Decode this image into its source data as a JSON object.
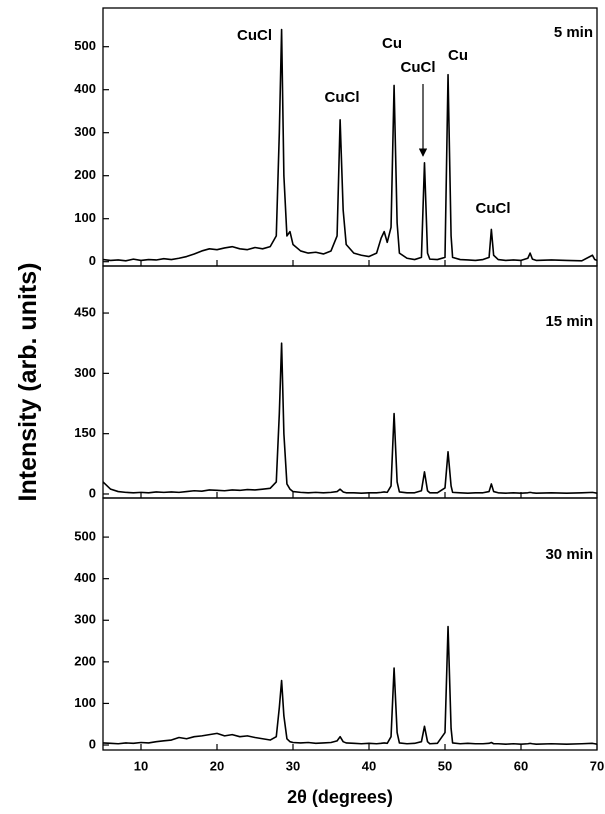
{
  "chart_data": [
    {
      "type": "line",
      "label": "5 min",
      "annotations": [
        "CuCl",
        "CuCl",
        "Cu",
        "CuCl",
        "Cu",
        "CuCl"
      ],
      "xlim": [
        5,
        70
      ],
      "xticks": [
        10,
        20,
        30,
        40,
        50,
        60,
        70
      ],
      "ylim": [
        -10,
        590
      ],
      "yticks": [
        0,
        100,
        200,
        300,
        400,
        500
      ],
      "series": [
        {
          "color": "#000000",
          "x": [
            5,
            6,
            7,
            8,
            9,
            10,
            11,
            12,
            13,
            14,
            15,
            16,
            17,
            18,
            19,
            20,
            21,
            22,
            23,
            24,
            25,
            26,
            27,
            27.8,
            28.2,
            28.5,
            28.8,
            29.2,
            29.6,
            30,
            31,
            32,
            33,
            34,
            35,
            35.8,
            36.2,
            36.6,
            37,
            38,
            39,
            40,
            41,
            41.6,
            42,
            42.4,
            42.9,
            43.3,
            43.7,
            44,
            45,
            46,
            46.9,
            47.3,
            47.7,
            48,
            49,
            50,
            50.4,
            50.8,
            51,
            52,
            53,
            54,
            55,
            55.8,
            56.1,
            56.4,
            57,
            58,
            59,
            60,
            60.9,
            61.2,
            61.5,
            62,
            64,
            66,
            68,
            69.4,
            69.7,
            70
          ],
          "values": [
            5,
            3,
            4,
            2,
            6,
            3,
            5,
            4,
            7,
            5,
            8,
            12,
            18,
            25,
            30,
            28,
            32,
            35,
            30,
            28,
            33,
            30,
            35,
            60,
            300,
            540,
            200,
            60,
            70,
            40,
            25,
            20,
            22,
            18,
            25,
            60,
            330,
            120,
            40,
            20,
            15,
            12,
            20,
            55,
            70,
            45,
            80,
            410,
            90,
            20,
            8,
            5,
            10,
            230,
            20,
            6,
            5,
            10,
            435,
            60,
            10,
            5,
            4,
            3,
            5,
            10,
            75,
            15,
            5,
            3,
            4,
            3,
            8,
            20,
            6,
            3,
            4,
            3,
            2,
            15,
            5,
            3
          ]
        }
      ]
    },
    {
      "type": "line",
      "label": "15 min",
      "ylabel": "Intensity (arb. units)",
      "xlim": [
        5,
        70
      ],
      "xticks": [
        10,
        20,
        30,
        40,
        50,
        60,
        70
      ],
      "ylim": [
        -10,
        567
      ],
      "yticks": [
        0,
        150,
        300,
        450
      ],
      "series": [
        {
          "color": "#000000",
          "x": [
            5,
            6,
            7,
            8,
            9,
            10,
            11,
            12,
            13,
            14,
            15,
            16,
            17,
            18,
            19,
            20,
            21,
            22,
            23,
            24,
            25,
            26,
            27,
            27.8,
            28.2,
            28.5,
            28.8,
            29.2,
            29.6,
            30,
            31,
            32,
            33,
            34,
            35,
            35.8,
            36.2,
            36.6,
            37,
            38,
            39,
            40,
            41,
            41.6,
            42,
            42.4,
            42.9,
            43.3,
            43.7,
            44,
            45,
            46,
            46.9,
            47.3,
            47.7,
            48,
            49,
            50,
            50.4,
            50.8,
            51,
            52,
            53,
            54,
            55,
            55.8,
            56.1,
            56.4,
            57,
            58,
            59,
            60,
            60.9,
            61.2,
            61.5,
            62,
            64,
            66,
            68,
            69.4,
            69.7,
            70
          ],
          "values": [
            30,
            12,
            6,
            4,
            3,
            4,
            3,
            5,
            4,
            5,
            4,
            6,
            8,
            7,
            10,
            9,
            8,
            10,
            9,
            11,
            10,
            12,
            14,
            30,
            200,
            375,
            150,
            25,
            12,
            6,
            4,
            3,
            4,
            3,
            4,
            6,
            12,
            5,
            3,
            3,
            2,
            3,
            3,
            4,
            5,
            4,
            20,
            200,
            30,
            5,
            3,
            3,
            8,
            55,
            8,
            3,
            3,
            15,
            105,
            20,
            4,
            3,
            2,
            3,
            3,
            6,
            25,
            6,
            3,
            2,
            3,
            2,
            3,
            4,
            3,
            2,
            3,
            2,
            3,
            4,
            3,
            2
          ]
        }
      ]
    },
    {
      "type": "line",
      "label": "30 min",
      "xlabel": "2θ (degrees)",
      "xlim": [
        5,
        70
      ],
      "xticks": [
        10,
        20,
        30,
        40,
        50,
        60,
        70
      ],
      "ylim": [
        -12,
        594
      ],
      "yticks": [
        0,
        100,
        200,
        300,
        400,
        500
      ],
      "series": [
        {
          "color": "#000000",
          "x": [
            5,
            6,
            7,
            8,
            9,
            10,
            11,
            12,
            13,
            14,
            15,
            16,
            17,
            18,
            19,
            20,
            21,
            22,
            23,
            24,
            25,
            26,
            27,
            27.8,
            28.2,
            28.5,
            28.8,
            29.2,
            29.6,
            30,
            31,
            32,
            33,
            34,
            35,
            35.8,
            36.2,
            36.6,
            37,
            38,
            39,
            40,
            41,
            41.6,
            42,
            42.4,
            42.9,
            43.3,
            43.7,
            44,
            45,
            46,
            46.9,
            47.3,
            47.7,
            48,
            49,
            50,
            50.4,
            50.8,
            51,
            52,
            53,
            54,
            55,
            55.8,
            56.1,
            56.4,
            57,
            58,
            59,
            60,
            60.9,
            61.2,
            61.5,
            62,
            64,
            66,
            68,
            69.4,
            69.7,
            70
          ],
          "values": [
            5,
            4,
            3,
            5,
            4,
            6,
            5,
            8,
            10,
            12,
            18,
            15,
            20,
            22,
            25,
            28,
            22,
            25,
            20,
            22,
            18,
            15,
            12,
            20,
            90,
            155,
            70,
            15,
            8,
            6,
            5,
            6,
            4,
            5,
            6,
            10,
            20,
            8,
            5,
            4,
            3,
            4,
            3,
            4,
            5,
            4,
            20,
            185,
            30,
            5,
            3,
            4,
            8,
            45,
            8,
            3,
            4,
            30,
            285,
            40,
            5,
            3,
            4,
            3,
            3,
            4,
            6,
            3,
            3,
            2,
            3,
            2,
            3,
            4,
            3,
            2,
            3,
            2,
            3,
            4,
            3,
            2
          ]
        }
      ]
    }
  ]
}
